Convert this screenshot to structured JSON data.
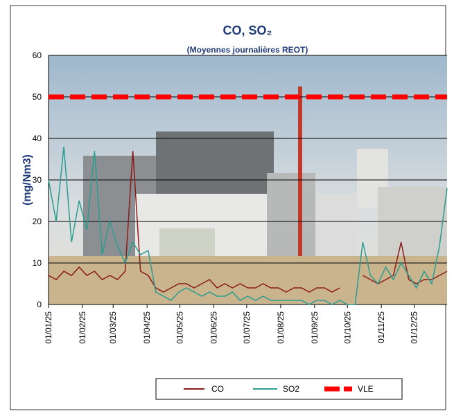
{
  "chart_data": {
    "type": "line",
    "title": "CO, SO₂",
    "subtitle": "(Moyennes journalières REOT)",
    "y_label": "(mg/Nm3)",
    "x": [
      "01/01/25",
      "08/01/25",
      "15/01/25",
      "22/01/25",
      "29/01/25",
      "05/02/25",
      "12/02/25",
      "19/02/25",
      "26/02/25",
      "05/03/25",
      "12/03/25",
      "19/03/25",
      "26/03/25",
      "02/04/25",
      "09/04/25",
      "16/04/25",
      "23/04/25",
      "30/04/25",
      "07/05/25",
      "14/05/25",
      "21/05/25",
      "28/05/25",
      "04/06/25",
      "11/06/25",
      "18/06/25",
      "25/06/25",
      "02/07/25",
      "09/07/25",
      "16/07/25",
      "23/07/25",
      "30/07/25",
      "06/08/25",
      "13/08/25",
      "20/08/25",
      "27/08/25",
      "03/09/25",
      "10/09/25",
      "17/09/25",
      "24/09/25",
      "01/10/25",
      "08/10/25",
      "15/10/25",
      "22/10/25",
      "29/10/25",
      "05/11/25",
      "12/11/25",
      "19/11/25",
      "26/11/25",
      "03/12/25",
      "10/12/25",
      "17/12/25",
      "24/12/25",
      "31/12/25"
    ],
    "series": [
      {
        "name": "CO",
        "color": "#8b1a1a",
        "values": [
          7,
          6,
          8,
          7,
          9,
          7,
          8,
          6,
          7,
          6,
          8,
          37,
          8,
          7,
          4,
          3,
          4,
          5,
          5,
          4,
          5,
          6,
          4,
          5,
          4,
          5,
          4,
          4,
          5,
          4,
          4,
          3,
          4,
          4,
          3,
          4,
          4,
          3,
          4,
          null,
          null,
          7,
          6,
          5,
          6,
          7,
          15,
          6,
          5,
          6,
          6,
          7,
          8
        ]
      },
      {
        "name": "SO2",
        "color": "#2a9d8f",
        "values": [
          30,
          20,
          38,
          15,
          25,
          18,
          37,
          12,
          20,
          14,
          10,
          15,
          12,
          13,
          3,
          2,
          1,
          3,
          4,
          3,
          2,
          3,
          2,
          2,
          3,
          1,
          2,
          1,
          2,
          1,
          1,
          1,
          1,
          1,
          0,
          1,
          1,
          0,
          1,
          0,
          0,
          15,
          7,
          5,
          9,
          6,
          10,
          7,
          4,
          8,
          5,
          14,
          28
        ]
      }
    ],
    "reference_line": {
      "name": "VLE",
      "value": 50,
      "color": "#ff0000"
    },
    "xlim": [
      "01/01/25",
      "31/12/25"
    ],
    "xticks": [
      "01/01/25",
      "01/02/25",
      "01/03/25",
      "01/04/25",
      "01/05/25",
      "01/06/25",
      "01/07/25",
      "01/08/25",
      "01/09/25",
      "01/10/25",
      "01/11/25",
      "01/12/25"
    ],
    "ylim": [
      0,
      60
    ],
    "yticks": [
      0,
      10,
      20,
      30,
      40,
      50,
      60
    ],
    "grid": true
  }
}
